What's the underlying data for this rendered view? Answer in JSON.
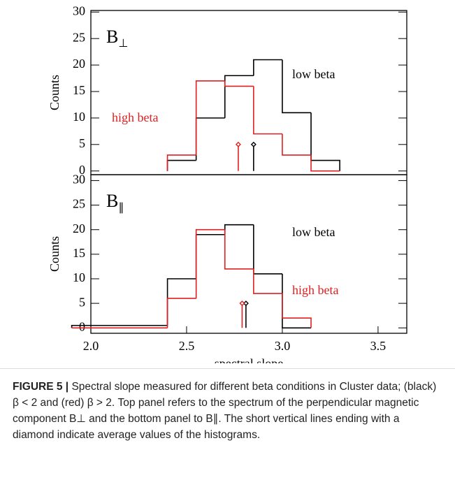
{
  "chart_data": [
    {
      "type": "histogram",
      "panel_label": "B",
      "panel_label_sub": "⊥",
      "y_label": "Counts",
      "bins": [
        2.4,
        2.55,
        2.7,
        2.85,
        3.0,
        3.15,
        3.3
      ],
      "series": [
        {
          "name": "low beta",
          "color": "#000000",
          "values": [
            2,
            10,
            18,
            21,
            11,
            2
          ],
          "mean": {
            "x": 2.85,
            "y": 5
          }
        },
        {
          "name": "high beta",
          "color": "#e02020",
          "values": [
            3,
            17,
            16,
            7,
            3,
            0
          ],
          "mean": {
            "x": 2.77,
            "y": 5
          }
        }
      ],
      "xlim": [
        2.0,
        3.65
      ],
      "ylim": [
        -0.7,
        30.3
      ],
      "yticks": [
        0,
        5,
        10,
        15,
        20,
        25,
        30
      ]
    },
    {
      "type": "histogram",
      "panel_label": "B",
      "panel_label_sub": "∥",
      "y_label": "Counts",
      "x_label": "spectral slope",
      "bins": [
        1.9,
        2.4,
        2.55,
        2.7,
        2.85,
        3.0,
        3.15
      ],
      "series": [
        {
          "name": "low beta",
          "color": "#000000",
          "values": [
            0.5,
            10,
            19,
            21,
            11,
            0
          ],
          "mean": {
            "x": 2.81,
            "y": 5
          }
        },
        {
          "name": "high beta",
          "color": "#e02020",
          "values": [
            0,
            6,
            20,
            12,
            7,
            2
          ],
          "mean": {
            "x": 2.79,
            "y": 5
          }
        }
      ],
      "xlim": [
        2.0,
        3.65
      ],
      "ylim": [
        -1.1,
        31.2
      ],
      "yticks": [
        0,
        5,
        10,
        15,
        20,
        25,
        30
      ],
      "xticks": [
        {
          "value": 2.0,
          "label": "2.0"
        },
        {
          "value": 2.5,
          "label": "2.5"
        },
        {
          "value": 3.0,
          "label": "3.0"
        },
        {
          "value": 3.5,
          "label": "3.5"
        }
      ]
    }
  ],
  "caption": {
    "label": "FIGURE 5 |",
    "text": "Spectral slope measured for different beta conditions in Cluster data; (black) β < 2 and (red) β > 2. Top panel refers to the spectrum of the perpendicular magnetic component B⊥ and the bottom panel to B∥. The short vertical lines ending with a diamond indicate average values of the histograms."
  }
}
